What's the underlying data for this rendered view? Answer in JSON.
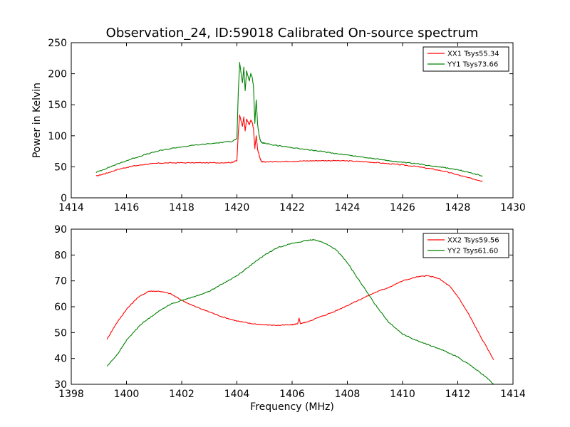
{
  "figure_title": "Observation_24, ID:59018 Calibrated On-source spectrum",
  "chart_data": [
    {
      "type": "line",
      "ylabel": "Power in Kelvin",
      "xlabel": "",
      "xlim": [
        1414,
        1430
      ],
      "ylim": [
        0,
        250
      ],
      "xticks": [
        1414,
        1416,
        1418,
        1420,
        1422,
        1424,
        1426,
        1428,
        1430
      ],
      "yticks": [
        0,
        50,
        100,
        150,
        200,
        250
      ],
      "legend_position": "top-right",
      "series": [
        {
          "name": "XX1 Tsys55.34",
          "color": "#ff0000",
          "x": [
            1414.9,
            1415.3,
            1415.7,
            1416.2,
            1416.7,
            1417.2,
            1417.8,
            1418.5,
            1419.2,
            1419.8,
            1420.0,
            1420.05,
            1420.1,
            1420.2,
            1420.25,
            1420.3,
            1420.35,
            1420.45,
            1420.5,
            1420.55,
            1420.6,
            1420.65,
            1420.7,
            1420.75,
            1420.8,
            1420.85,
            1420.9,
            1421.0,
            1421.5,
            1422.0,
            1422.5,
            1423.0,
            1423.5,
            1424.0,
            1424.5,
            1425.0,
            1425.5,
            1426.0,
            1426.5,
            1427.0,
            1427.5,
            1428.0,
            1428.5,
            1428.9
          ],
          "values": [
            35,
            40,
            46,
            51,
            54,
            56,
            56.5,
            56.5,
            56.5,
            57,
            60,
            105,
            133,
            115,
            130,
            108,
            127,
            118,
            125,
            122,
            112,
            80,
            100,
            78,
            70,
            62,
            58,
            58,
            58.5,
            59,
            59.5,
            60,
            60,
            59.5,
            58.5,
            57,
            55,
            53,
            50.5,
            47,
            43,
            37,
            31,
            27
          ]
        },
        {
          "name": "YY1 Tsys73.66",
          "color": "#008000",
          "x": [
            1414.9,
            1415.3,
            1415.7,
            1416.2,
            1416.7,
            1417.2,
            1417.8,
            1418.5,
            1419.2,
            1419.8,
            1420.0,
            1420.05,
            1420.1,
            1420.2,
            1420.25,
            1420.3,
            1420.35,
            1420.45,
            1420.5,
            1420.55,
            1420.6,
            1420.65,
            1420.7,
            1420.75,
            1420.8,
            1420.85,
            1420.9,
            1421.0,
            1421.5,
            1422.0,
            1422.5,
            1423.0,
            1423.5,
            1424.0,
            1424.5,
            1425.0,
            1425.5,
            1426.0,
            1426.5,
            1427.0,
            1427.5,
            1428.0,
            1428.5,
            1428.9
          ],
          "values": [
            41,
            48,
            55,
            63,
            70,
            76,
            81,
            85,
            88,
            91,
            95,
            170,
            218,
            185,
            210,
            172,
            205,
            188,
            200,
            195,
            180,
            120,
            158,
            118,
            102,
            92,
            89,
            88,
            84,
            81,
            78,
            75,
            72,
            69,
            66,
            63,
            60,
            57,
            55,
            52,
            49,
            45,
            40,
            35
          ]
        }
      ]
    },
    {
      "type": "line",
      "ylabel": "",
      "xlabel": "Frequency (MHz)",
      "xlim": [
        1398,
        1414
      ],
      "ylim": [
        30,
        90
      ],
      "xticks": [
        1398,
        1400,
        1402,
        1404,
        1406,
        1408,
        1410,
        1412,
        1414
      ],
      "yticks": [
        30,
        40,
        50,
        60,
        70,
        80,
        90
      ],
      "legend_position": "top-right",
      "series": [
        {
          "name": "XX2 Tsys59.56",
          "color": "#ff0000",
          "x": [
            1399.3,
            1399.6,
            1400.0,
            1400.4,
            1400.8,
            1401.2,
            1401.6,
            1402.0,
            1402.5,
            1403.0,
            1403.5,
            1404.0,
            1404.5,
            1405.0,
            1405.5,
            1406.0,
            1406.2,
            1406.25,
            1406.3,
            1406.5,
            1407.0,
            1407.5,
            1408.0,
            1408.5,
            1409.0,
            1409.5,
            1410.0,
            1410.5,
            1410.9,
            1411.3,
            1411.7,
            1412.0,
            1412.4,
            1412.8,
            1413.3
          ],
          "values": [
            47.5,
            53,
            59,
            63.5,
            66,
            66,
            65,
            62.5,
            60,
            58,
            56,
            54.5,
            53.5,
            53,
            52.8,
            53,
            53.5,
            55.5,
            53.5,
            54,
            56,
            58,
            60.5,
            63,
            65.5,
            67.5,
            70,
            71.5,
            72,
            71,
            68,
            64,
            57,
            49,
            39.5
          ]
        },
        {
          "name": "YY2 Tsys61.60",
          "color": "#008000",
          "x": [
            1399.3,
            1399.7,
            1400.0,
            1400.5,
            1401.0,
            1401.5,
            1402.0,
            1402.5,
            1403.0,
            1403.5,
            1404.0,
            1404.5,
            1405.0,
            1405.5,
            1406.0,
            1406.5,
            1406.8,
            1407.2,
            1407.6,
            1408.0,
            1408.5,
            1409.0,
            1409.5,
            1410.0,
            1410.5,
            1411.0,
            1411.5,
            1412.0,
            1412.5,
            1413.0,
            1413.3
          ],
          "values": [
            37,
            42,
            47,
            53,
            57,
            60.5,
            62.5,
            64,
            66,
            69,
            72,
            76,
            80,
            83,
            84.5,
            85.5,
            86,
            84.5,
            82,
            77,
            69,
            61,
            54,
            49.5,
            47,
            45,
            43,
            40.5,
            37,
            33,
            30
          ]
        }
      ]
    }
  ]
}
